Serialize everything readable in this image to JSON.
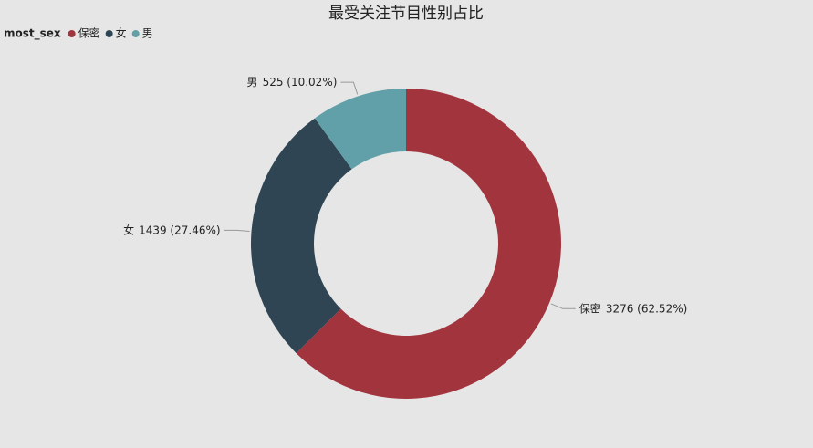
{
  "chart_data": {
    "type": "pie",
    "title": "最受关注节目性别占比",
    "legend_title": "most_sex",
    "categories": [
      "保密",
      "女",
      "男"
    ],
    "values": [
      3276,
      1439,
      525
    ],
    "value_labels": [
      "3276 (62.52%)",
      "1439 (27.46%)",
      "525 (10.02%)"
    ],
    "colors": [
      "#a2343e",
      "#2f4554",
      "#61a0a8"
    ],
    "legend": "top-left"
  }
}
